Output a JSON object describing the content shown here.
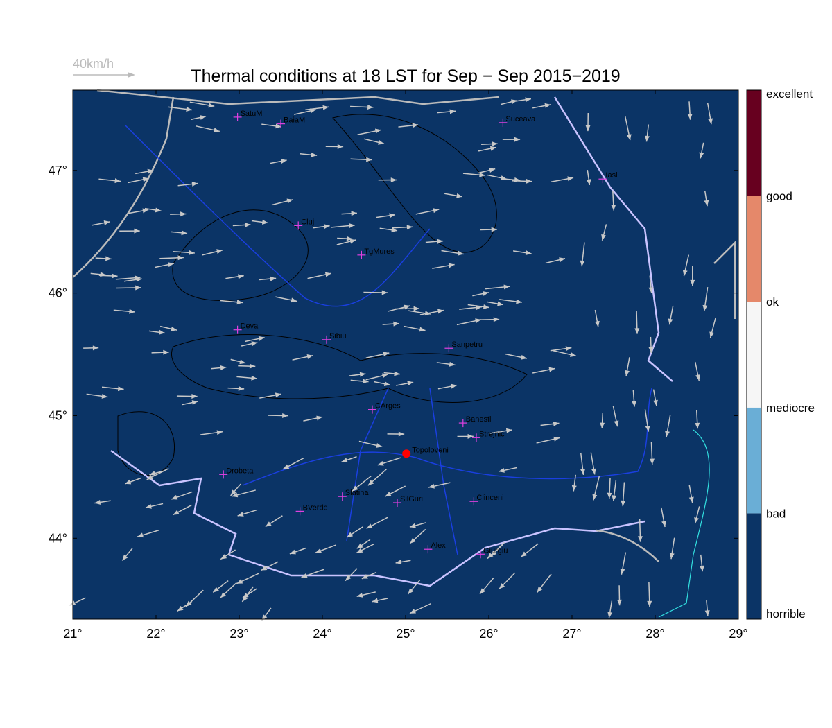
{
  "title": "Thermal conditions at 18 LST for Sep − Sep  2015−2019",
  "wind_scale": {
    "label": "40km/h"
  },
  "map": {
    "lon_range": [
      21,
      29
    ],
    "lat_range": [
      43.34,
      47.655
    ],
    "xticks": [
      {
        "value": 21,
        "label": "21°"
      },
      {
        "value": 22,
        "label": "22°"
      },
      {
        "value": 23,
        "label": "23°"
      },
      {
        "value": 24,
        "label": "24°"
      },
      {
        "value": 25,
        "label": "25°"
      },
      {
        "value": 26,
        "label": "26°"
      },
      {
        "value": 27,
        "label": "27°"
      },
      {
        "value": 28,
        "label": "28°"
      },
      {
        "value": 29,
        "label": "29°"
      }
    ],
    "yticks": [
      {
        "value": 44,
        "label": "44°"
      },
      {
        "value": 45,
        "label": "45°"
      },
      {
        "value": 46,
        "label": "46°"
      },
      {
        "value": 47,
        "label": "47°"
      }
    ]
  },
  "cities": [
    {
      "name": "SatuM",
      "lon": 22.98,
      "lat": 47.435
    },
    {
      "name": "BaiaM",
      "lon": 23.5,
      "lat": 47.38
    },
    {
      "name": "Suceava",
      "lon": 26.17,
      "lat": 47.39
    },
    {
      "name": "Iasi",
      "lon": 27.37,
      "lat": 46.93
    },
    {
      "name": "Cluj",
      "lon": 23.71,
      "lat": 46.55
    },
    {
      "name": "TgMures",
      "lon": 24.47,
      "lat": 46.31
    },
    {
      "name": "Deva",
      "lon": 22.98,
      "lat": 45.7
    },
    {
      "name": "Sibiu",
      "lon": 24.05,
      "lat": 45.62
    },
    {
      "name": "Sanpetru",
      "lon": 25.52,
      "lat": 45.55
    },
    {
      "name": "CArges",
      "lon": 24.6,
      "lat": 45.05
    },
    {
      "name": "Banesti",
      "lon": 25.69,
      "lat": 44.94
    },
    {
      "name": "Strejnic",
      "lon": 25.85,
      "lat": 44.82
    },
    {
      "name": "Drobeta",
      "lon": 22.81,
      "lat": 44.52
    },
    {
      "name": "Slatina",
      "lon": 24.24,
      "lat": 44.34
    },
    {
      "name": "SilGuri",
      "lon": 24.9,
      "lat": 44.29
    },
    {
      "name": "Clinceni",
      "lon": 25.82,
      "lat": 44.3
    },
    {
      "name": "BVerde",
      "lon": 23.73,
      "lat": 44.22
    },
    {
      "name": "Alex",
      "lon": 25.27,
      "lat": 43.91
    },
    {
      "name": "Giurgiu",
      "lon": 25.9,
      "lat": 43.87
    }
  ],
  "highlight": {
    "name": "Topoloveni",
    "lon": 25.01,
    "lat": 44.69
  },
  "colorbar": {
    "labels": [
      "horrible",
      "bad",
      "mediocre",
      "ok",
      "good",
      "excellent"
    ],
    "colors": [
      "#0b3466",
      "#6aaed6",
      "#f6f6f6",
      "#e5886a",
      "#67001f"
    ]
  }
}
